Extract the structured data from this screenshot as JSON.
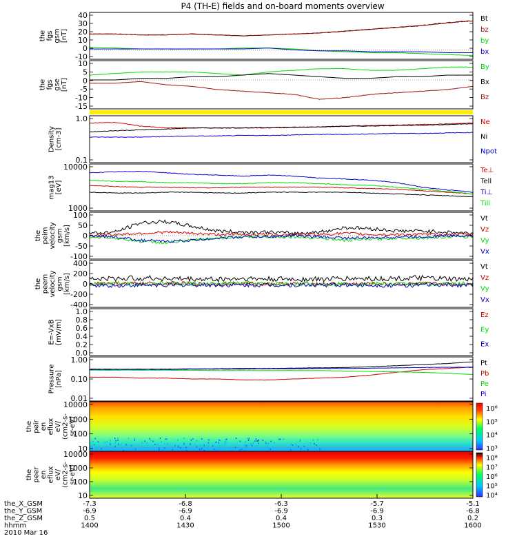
{
  "title": "P4 (TH-E) fields and on-board moments overview",
  "colors": {
    "black": "#000000",
    "red": "#cc0000",
    "green": "#00dd00",
    "blue": "#0000cc",
    "yellow": "#ffee00",
    "darkred": "#a01010"
  },
  "chart_data": [
    {
      "type": "line",
      "id": "fgs1",
      "ylabel": [
        "the",
        "fgs",
        "gsm",
        "[nT]"
      ],
      "yticks": [
        "40",
        "30",
        "20",
        "10",
        "0",
        "-10"
      ],
      "ylim": [
        -10,
        40
      ],
      "series": [
        {
          "name": "Bt",
          "color": "#000000",
          "values": [
            17,
            17,
            16,
            16,
            17,
            16,
            15,
            16,
            17,
            18,
            20,
            22,
            24,
            26,
            29,
            31
          ]
        },
        {
          "name": "bz",
          "color": "#a01010",
          "values": [
            17,
            17,
            16,
            16,
            17,
            16,
            15,
            16,
            17,
            18,
            20,
            22,
            24,
            26,
            29,
            31
          ]
        },
        {
          "name": "by",
          "color": "#00dd00",
          "values": [
            3,
            2,
            1,
            1,
            1,
            1,
            2,
            2,
            1,
            -1,
            -2,
            -3,
            -3,
            -4,
            -5,
            -6
          ]
        },
        {
          "name": "bx",
          "color": "#0000cc",
          "values": [
            1,
            1,
            1,
            1,
            1,
            1,
            1,
            2,
            0,
            -1,
            -1,
            -2,
            -2,
            -2,
            -3,
            -3
          ]
        }
      ]
    },
    {
      "type": "line",
      "id": "fgs2",
      "ylabel": [
        "the",
        "fgs",
        "gse",
        "[nT]"
      ],
      "yticks": [
        "10",
        "5",
        "0",
        "-5",
        "-10",
        "-15"
      ],
      "ylim": [
        -18,
        12
      ],
      "series": [
        {
          "name": "By",
          "color": "#00dd00",
          "values": [
            3,
            4,
            5,
            5,
            5,
            4,
            3,
            5,
            6,
            7,
            7,
            6,
            6,
            7,
            8,
            8
          ]
        },
        {
          "name": "Bx",
          "color": "#000000",
          "values": [
            0,
            0,
            1,
            1,
            2,
            2,
            3,
            4,
            3,
            2,
            1,
            1,
            2,
            2,
            3,
            3
          ]
        },
        {
          "name": "Bz",
          "color": "#a01010",
          "values": [
            -2,
            -2,
            -1,
            -3,
            -4,
            -6,
            -7,
            -8,
            -9,
            -12,
            -11,
            -9,
            -8,
            -7,
            -6,
            -4
          ]
        }
      ]
    },
    {
      "type": "line",
      "id": "density",
      "ylabel": [
        "Density",
        "[cm-3]"
      ],
      "yticks": [
        "1.0",
        "0.1"
      ],
      "ylim": [
        0.1,
        1.0
      ],
      "scale": "log",
      "series": [
        {
          "name": "Ne",
          "color": "#cc0000",
          "values": [
            0.7,
            0.72,
            0.6,
            0.55,
            0.55,
            0.55,
            0.55,
            0.55,
            0.56,
            0.58,
            0.6,
            0.62,
            0.63,
            0.65,
            0.67,
            0.7
          ]
        },
        {
          "name": "Ni",
          "color": "#000000",
          "values": [
            0.45,
            0.48,
            0.5,
            0.52,
            0.55,
            0.55,
            0.55,
            0.56,
            0.57,
            0.58,
            0.6,
            0.6,
            0.62,
            0.63,
            0.65,
            0.68
          ]
        },
        {
          "name": "Npot",
          "color": "#0000cc",
          "values": [
            0.35,
            0.35,
            0.35,
            0.36,
            0.37,
            0.37,
            0.38,
            0.38,
            0.39,
            0.4,
            0.4,
            0.41,
            0.42,
            0.42,
            0.43,
            0.44
          ]
        }
      ]
    },
    {
      "type": "line",
      "id": "temp",
      "ylabel": [
        "mag13",
        "[eV]"
      ],
      "yticks": [
        "10000",
        "1000"
      ],
      "ylim": [
        1000,
        10000
      ],
      "scale": "log",
      "series": [
        {
          "name": "Te⊥",
          "color": "#cc0000",
          "values": [
            3500,
            3300,
            3200,
            3200,
            3100,
            3100,
            3200,
            3200,
            3200,
            3200,
            3100,
            3000,
            2900,
            2700,
            2500,
            2300
          ]
        },
        {
          "name": "Tell",
          "color": "#000000",
          "values": [
            2500,
            2400,
            2400,
            2500,
            2500,
            2400,
            2400,
            2500,
            2500,
            2500,
            2500,
            2400,
            2300,
            2200,
            2100,
            2000
          ]
        },
        {
          "name": "Ti⊥",
          "color": "#0000cc",
          "values": [
            6500,
            6800,
            7000,
            6500,
            6000,
            5800,
            5500,
            5800,
            5500,
            5000,
            4800,
            4500,
            4000,
            3200,
            2800,
            2500
          ]
        },
        {
          "name": "Till",
          "color": "#00dd00",
          "values": [
            4500,
            4300,
            4200,
            4000,
            4000,
            3800,
            3800,
            4000,
            4000,
            3800,
            3600,
            3500,
            3200,
            2900,
            2600,
            2300
          ]
        }
      ]
    },
    {
      "type": "line",
      "id": "peimvel",
      "ylabel": [
        "the",
        "peim",
        "velocity",
        "gsm",
        "[km/s]"
      ],
      "yticks": [
        "100",
        "50",
        "0",
        "-50",
        "-100"
      ],
      "ylim": [
        -100,
        100
      ],
      "series": [
        {
          "name": "Vt",
          "color": "#000000",
          "values": [
            10,
            15,
            55,
            60,
            40,
            20,
            15,
            15,
            10,
            15,
            35,
            30,
            20,
            20,
            15,
            10
          ]
        },
        {
          "name": "Vz",
          "color": "#cc0000",
          "values": [
            0,
            5,
            10,
            15,
            10,
            5,
            5,
            5,
            5,
            5,
            10,
            5,
            5,
            5,
            5,
            5
          ]
        },
        {
          "name": "Vy",
          "color": "#00dd00",
          "values": [
            -5,
            -10,
            -25,
            -30,
            -20,
            -10,
            -5,
            -5,
            -5,
            -10,
            -20,
            -15,
            -10,
            -10,
            -5,
            -5
          ]
        },
        {
          "name": "Vx",
          "color": "#0000cc",
          "values": [
            0,
            -5,
            -20,
            -25,
            -20,
            -10,
            -5,
            -5,
            0,
            -5,
            -10,
            -10,
            -5,
            -5,
            0,
            0
          ]
        }
      ]
    },
    {
      "type": "line",
      "id": "peemvel",
      "ylabel": [
        "the",
        "peem",
        "velocity",
        "gsm",
        "[km/s]"
      ],
      "yticks": [
        "400",
        "200",
        "0",
        "-200",
        "-400"
      ],
      "ylim": [
        -400,
        400
      ],
      "series": [
        {
          "name": "Vt",
          "color": "#000000",
          "values": [
            80,
            90,
            100,
            90,
            80,
            80,
            90,
            80,
            80,
            80,
            90,
            90,
            90,
            100,
            80,
            70
          ]
        },
        {
          "name": "Vz",
          "color": "#cc0000",
          "values": [
            0,
            10,
            0,
            10,
            0,
            0,
            0,
            0,
            0,
            0,
            0,
            0,
            0,
            0,
            0,
            0
          ]
        },
        {
          "name": "Vy",
          "color": "#00dd00",
          "values": [
            0,
            20,
            0,
            10,
            0,
            0,
            10,
            0,
            0,
            0,
            0,
            0,
            0,
            0,
            0,
            0
          ]
        },
        {
          "name": "Vx",
          "color": "#0000cc",
          "values": [
            -20,
            -30,
            -20,
            -20,
            -20,
            -20,
            -20,
            -20,
            -20,
            -20,
            -20,
            -20,
            -30,
            -20,
            -20,
            -20
          ]
        }
      ]
    },
    {
      "type": "line",
      "id": "efield",
      "ylabel": [
        "E=-VxB",
        "[mV/m]"
      ],
      "yticks": [
        "1.0",
        "0.8",
        "0.6",
        "0.4",
        "0.2",
        "0.0"
      ],
      "ylim": [
        0,
        1
      ],
      "series": [
        {
          "name": "Ez",
          "color": "#cc0000",
          "values": []
        },
        {
          "name": "Ey",
          "color": "#00dd00",
          "values": []
        },
        {
          "name": "Ex",
          "color": "#0000cc",
          "values": []
        }
      ]
    },
    {
      "type": "line",
      "id": "pressure",
      "ylabel": [
        "Pressure",
        "[nPa]"
      ],
      "yticks": [
        "1.00",
        "0.10",
        "0.01"
      ],
      "ylim": [
        0.01,
        1.0
      ],
      "scale": "log",
      "series": [
        {
          "name": "Pt",
          "color": "#000000",
          "values": [
            0.28,
            0.28,
            0.28,
            0.28,
            0.29,
            0.29,
            0.3,
            0.3,
            0.31,
            0.32,
            0.33,
            0.36,
            0.4,
            0.45,
            0.5,
            0.6
          ]
        },
        {
          "name": "Pb",
          "color": "#cc0000",
          "values": [
            0.12,
            0.12,
            0.11,
            0.11,
            0.1,
            0.1,
            0.09,
            0.09,
            0.1,
            0.11,
            0.12,
            0.15,
            0.2,
            0.26,
            0.3,
            0.35
          ]
        },
        {
          "name": "Pe",
          "color": "#00dd00",
          "values": [
            0.25,
            0.25,
            0.25,
            0.25,
            0.25,
            0.24,
            0.24,
            0.24,
            0.24,
            0.24,
            0.23,
            0.22,
            0.21,
            0.2,
            0.18,
            0.16
          ]
        },
        {
          "name": "Pi",
          "color": "#0000cc",
          "values": [
            0.27,
            0.27,
            0.27,
            0.27,
            0.28,
            0.28,
            0.28,
            0.29,
            0.29,
            0.3,
            0.3,
            0.31,
            0.32,
            0.33,
            0.34,
            0.34
          ]
        }
      ]
    },
    {
      "type": "heatmap",
      "id": "peir",
      "ylabel": [
        "the",
        "peir",
        "en",
        "eflux",
        "eV/",
        "(cm2-s-",
        "sr-eV)"
      ],
      "yticks": [
        "10000",
        "1000",
        "100",
        "10"
      ],
      "colorbar_ticks": [
        "10⁶",
        "10⁵",
        "10⁴",
        "10³"
      ]
    },
    {
      "type": "heatmap",
      "id": "peer",
      "ylabel": [
        "the",
        "peer",
        "en",
        "eflux",
        "eV/",
        "(cm2-s-",
        "sr-eV)"
      ],
      "yticks": [
        "10000",
        "1000",
        "100",
        "10"
      ],
      "colorbar_ticks": [
        "10⁸",
        "10⁷",
        "10⁶",
        "10⁵",
        "10⁴"
      ]
    }
  ],
  "xaxis": {
    "row_labels": [
      "the_X_GSM",
      "the_Y_GSM",
      "the_Z_GSM",
      "hhmm",
      "2010 Mar 16"
    ],
    "columns": [
      [
        "-7.3",
        "-6.9",
        "0.5",
        "1400"
      ],
      [
        "-6.8",
        "-6.9",
        "0.4",
        "1430"
      ],
      [
        "-6.3",
        "-6.9",
        "0.4",
        "1500"
      ],
      [
        "-5.7",
        "-6.9",
        "0.3",
        "1530"
      ],
      [
        "-5.1",
        "-6.8",
        "0.2",
        "1600"
      ]
    ]
  }
}
